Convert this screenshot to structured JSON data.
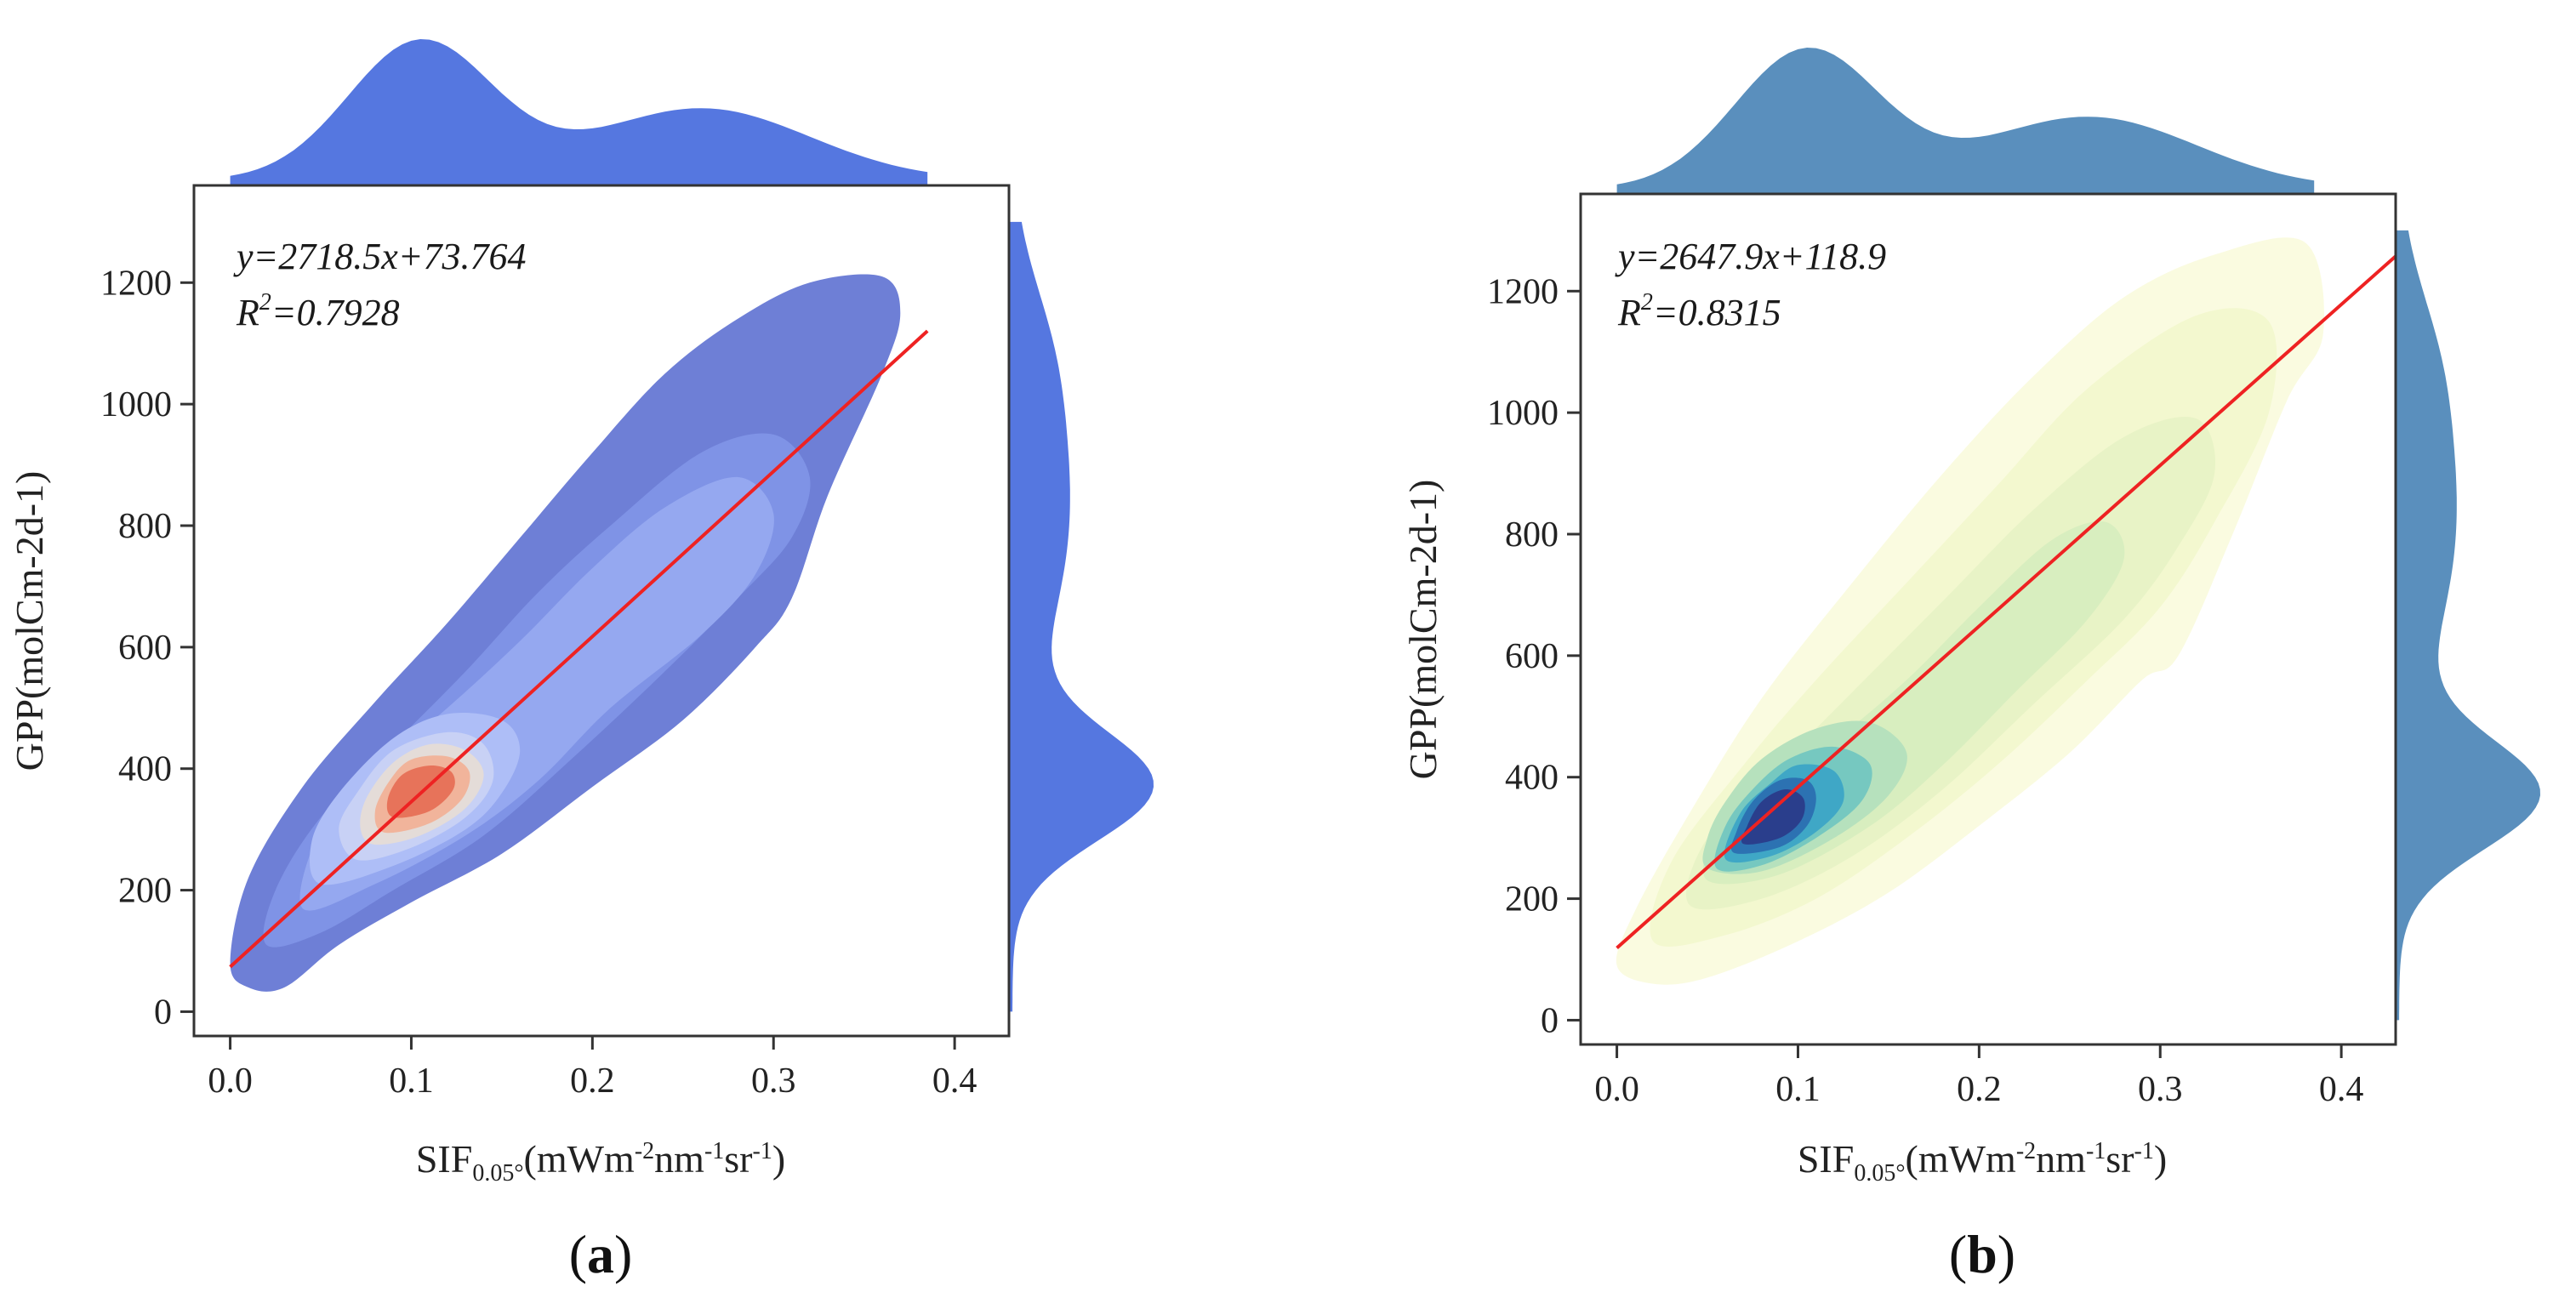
{
  "chart_data": [
    {
      "type": "scatter",
      "subtype": "joint-kde-density-with-regression",
      "panel_label": "a",
      "equation": "y=2718.5x+73.764",
      "r2_label": "R",
      "r2_sup": "2",
      "r2_value": "=0.7928",
      "regression": {
        "slope": 2718.5,
        "intercept": 73.764,
        "x_range": [
          0.0,
          0.385
        ],
        "color": "#ee2222"
      },
      "xlabel": {
        "base": "SIF",
        "sub": "0.05°",
        "open": "(mWm",
        "s1": "-2",
        "t1": "nm",
        "s2": "-1",
        "t2": "sr",
        "s3": "-1",
        "close": ")"
      },
      "ylabel": "GPP(molCm-2d-1)",
      "xlim": [
        -0.02,
        0.43
      ],
      "ylim": [
        -40,
        1360
      ],
      "xticks": [
        0.0,
        0.1,
        0.2,
        0.3,
        0.4
      ],
      "xtick_labels": [
        "0.0",
        "0.1",
        "0.2",
        "0.3",
        "0.4"
      ],
      "yticks": [
        0,
        200,
        400,
        600,
        800,
        1000,
        1200
      ],
      "ytick_labels": [
        "0",
        "200",
        "400",
        "600",
        "800",
        "1000",
        "1200"
      ],
      "density_colormap": "coolwarm",
      "marginal_color": "#5577e0",
      "contour_levels": [
        {
          "color": "#6e7fd6",
          "points": [
            [
              0.0,
              80
            ],
            [
              0.01,
              40
            ],
            [
              0.03,
              40
            ],
            [
              0.06,
              110
            ],
            [
              0.1,
              180
            ],
            [
              0.15,
              260
            ],
            [
              0.2,
              370
            ],
            [
              0.25,
              480
            ],
            [
              0.29,
              600
            ],
            [
              0.31,
              680
            ],
            [
              0.33,
              850
            ],
            [
              0.36,
              1050
            ],
            [
              0.37,
              1150
            ],
            [
              0.36,
              1210
            ],
            [
              0.32,
              1200
            ],
            [
              0.28,
              1140
            ],
            [
              0.24,
              1050
            ],
            [
              0.2,
              920
            ],
            [
              0.16,
              780
            ],
            [
              0.12,
              640
            ],
            [
              0.08,
              510
            ],
            [
              0.04,
              370
            ],
            [
              0.01,
              220
            ]
          ]
        },
        {
          "color": "#7f93e6",
          "points": [
            [
              0.02,
              110
            ],
            [
              0.05,
              130
            ],
            [
              0.09,
              200
            ],
            [
              0.14,
              290
            ],
            [
              0.19,
              420
            ],
            [
              0.24,
              560
            ],
            [
              0.28,
              680
            ],
            [
              0.31,
              780
            ],
            [
              0.32,
              880
            ],
            [
              0.3,
              950
            ],
            [
              0.26,
              920
            ],
            [
              0.21,
              800
            ],
            [
              0.17,
              690
            ],
            [
              0.13,
              560
            ],
            [
              0.09,
              440
            ],
            [
              0.05,
              320
            ],
            [
              0.025,
              200
            ]
          ]
        },
        {
          "color": "#95a8f0",
          "points": [
            [
              0.04,
              170
            ],
            [
              0.08,
              210
            ],
            [
              0.13,
              290
            ],
            [
              0.17,
              380
            ],
            [
              0.21,
              500
            ],
            [
              0.26,
              620
            ],
            [
              0.29,
              720
            ],
            [
              0.3,
              820
            ],
            [
              0.28,
              880
            ],
            [
              0.24,
              830
            ],
            [
              0.2,
              730
            ],
            [
              0.16,
              610
            ],
            [
              0.12,
              500
            ],
            [
              0.08,
              400
            ],
            [
              0.05,
              300
            ]
          ]
        },
        {
          "color": "#aebef7",
          "points": [
            [
              0.05,
              210
            ],
            [
              0.09,
              240
            ],
            [
              0.13,
              300
            ],
            [
              0.15,
              360
            ],
            [
              0.16,
              430
            ],
            [
              0.15,
              480
            ],
            [
              0.12,
              490
            ],
            [
              0.09,
              450
            ],
            [
              0.06,
              360
            ],
            [
              0.045,
              280
            ]
          ]
        },
        {
          "color": "#c8d1f5",
          "points": [
            [
              0.07,
              250
            ],
            [
              0.1,
              270
            ],
            [
              0.13,
              320
            ],
            [
              0.145,
              380
            ],
            [
              0.14,
              440
            ],
            [
              0.12,
              460
            ],
            [
              0.09,
              430
            ],
            [
              0.07,
              360
            ],
            [
              0.06,
              300
            ]
          ]
        },
        {
          "color": "#e4dcd8",
          "points": [
            [
              0.08,
              275
            ],
            [
              0.105,
              290
            ],
            [
              0.13,
              335
            ],
            [
              0.14,
              390
            ],
            [
              0.13,
              430
            ],
            [
              0.11,
              440
            ],
            [
              0.09,
              410
            ],
            [
              0.075,
              350
            ],
            [
              0.072,
              300
            ]
          ]
        },
        {
          "color": "#f1b49b",
          "points": [
            [
              0.085,
              295
            ],
            [
              0.11,
              310
            ],
            [
              0.128,
              350
            ],
            [
              0.132,
              395
            ],
            [
              0.12,
              420
            ],
            [
              0.1,
              415
            ],
            [
              0.088,
              380
            ],
            [
              0.08,
              330
            ]
          ]
        },
        {
          "color": "#e7735a",
          "points": [
            [
              0.09,
              320
            ],
            [
              0.11,
              330
            ],
            [
              0.123,
              365
            ],
            [
              0.122,
              395
            ],
            [
              0.11,
              405
            ],
            [
              0.095,
              390
            ],
            [
              0.087,
              350
            ]
          ]
        }
      ]
    },
    {
      "type": "scatter",
      "subtype": "joint-kde-density-with-regression",
      "panel_label": "b",
      "equation": "y=2647.9x+118.9",
      "r2_label": "R",
      "r2_sup": "2",
      "r2_value": "=0.8315",
      "regression": {
        "slope": 2647.9,
        "intercept": 118.9,
        "x_range": [
          0.0,
          0.43
        ],
        "color": "#ee2222"
      },
      "xlabel": {
        "base": "SIF",
        "sub": "0.05°",
        "open": "(mWm",
        "s1": "-2",
        "t1": "nm",
        "s2": "-1",
        "t2": "sr",
        "s3": "-1",
        "close": ")"
      },
      "ylabel": "GPP(molCm-2d-1)",
      "xlim": [
        -0.02,
        0.43
      ],
      "ylim": [
        -40,
        1360
      ],
      "xticks": [
        0.0,
        0.1,
        0.2,
        0.3,
        0.4
      ],
      "xtick_labels": [
        "0.0",
        "0.1",
        "0.2",
        "0.3",
        "0.4"
      ],
      "yticks": [
        0,
        200,
        400,
        600,
        800,
        1000,
        1200
      ],
      "ytick_labels": [
        "0",
        "200",
        "400",
        "600",
        "800",
        "1000",
        "1200"
      ],
      "density_colormap": "YlGnBu",
      "marginal_color": "#5a8fbd",
      "contour_levels": [
        {
          "color": "#fafbe0",
          "points": [
            [
              0.0,
              90
            ],
            [
              0.02,
              60
            ],
            [
              0.05,
              70
            ],
            [
              0.1,
              130
            ],
            [
              0.15,
              210
            ],
            [
              0.2,
              320
            ],
            [
              0.25,
              440
            ],
            [
              0.29,
              560
            ],
            [
              0.31,
              600
            ],
            [
              0.34,
              800
            ],
            [
              0.37,
              1020
            ],
            [
              0.39,
              1130
            ],
            [
              0.38,
              1280
            ],
            [
              0.33,
              1260
            ],
            [
              0.28,
              1190
            ],
            [
              0.23,
              1060
            ],
            [
              0.18,
              900
            ],
            [
              0.13,
              720
            ],
            [
              0.08,
              530
            ],
            [
              0.04,
              340
            ],
            [
              0.01,
              180
            ]
          ]
        },
        {
          "color": "#f3f8cf",
          "points": [
            [
              0.02,
              130
            ],
            [
              0.06,
              140
            ],
            [
              0.11,
              200
            ],
            [
              0.16,
              300
            ],
            [
              0.21,
              420
            ],
            [
              0.26,
              560
            ],
            [
              0.3,
              680
            ],
            [
              0.33,
              820
            ],
            [
              0.36,
              1000
            ],
            [
              0.36,
              1150
            ],
            [
              0.32,
              1160
            ],
            [
              0.26,
              1040
            ],
            [
              0.21,
              880
            ],
            [
              0.16,
              720
            ],
            [
              0.11,
              560
            ],
            [
              0.07,
              420
            ],
            [
              0.03,
              260
            ]
          ]
        },
        {
          "color": "#e8f3c6",
          "points": [
            [
              0.04,
              190
            ],
            [
              0.08,
              200
            ],
            [
              0.13,
              270
            ],
            [
              0.18,
              380
            ],
            [
              0.23,
              520
            ],
            [
              0.28,
              660
            ],
            [
              0.31,
              780
            ],
            [
              0.33,
              900
            ],
            [
              0.32,
              990
            ],
            [
              0.28,
              960
            ],
            [
              0.23,
              840
            ],
            [
              0.18,
              690
            ],
            [
              0.13,
              540
            ],
            [
              0.09,
              420
            ],
            [
              0.05,
              300
            ]
          ]
        },
        {
          "color": "#d8eebf",
          "points": [
            [
              0.05,
              230
            ],
            [
              0.09,
              240
            ],
            [
              0.14,
              320
            ],
            [
              0.18,
              420
            ],
            [
              0.22,
              540
            ],
            [
              0.26,
              660
            ],
            [
              0.28,
              760
            ],
            [
              0.27,
              820
            ],
            [
              0.24,
              790
            ],
            [
              0.2,
              680
            ],
            [
              0.16,
              560
            ],
            [
              0.12,
              460
            ],
            [
              0.08,
              380
            ],
            [
              0.055,
              310
            ]
          ]
        },
        {
          "color": "#b6e1bd",
          "points": [
            [
              0.05,
              250
            ],
            [
              0.08,
              245
            ],
            [
              0.12,
              300
            ],
            [
              0.15,
              370
            ],
            [
              0.16,
              440
            ],
            [
              0.14,
              490
            ],
            [
              0.11,
              480
            ],
            [
              0.08,
              430
            ],
            [
              0.06,
              360
            ],
            [
              0.05,
              300
            ]
          ]
        },
        {
          "color": "#76c8c0",
          "points": [
            [
              0.055,
              250
            ],
            [
              0.08,
              255
            ],
            [
              0.11,
              300
            ],
            [
              0.135,
              360
            ],
            [
              0.14,
              420
            ],
            [
              0.12,
              450
            ],
            [
              0.095,
              430
            ],
            [
              0.075,
              380
            ],
            [
              0.06,
              320
            ]
          ]
        },
        {
          "color": "#3fa7c6",
          "points": [
            [
              0.06,
              265
            ],
            [
              0.085,
              270
            ],
            [
              0.11,
              310
            ],
            [
              0.125,
              360
            ],
            [
              0.12,
              410
            ],
            [
              0.1,
              420
            ],
            [
              0.085,
              390
            ],
            [
              0.068,
              340
            ]
          ]
        },
        {
          "color": "#2c72b2",
          "points": [
            [
              0.065,
              275
            ],
            [
              0.09,
              285
            ],
            [
              0.105,
              320
            ],
            [
              0.11,
              365
            ],
            [
              0.105,
              395
            ],
            [
              0.09,
              395
            ],
            [
              0.075,
              360
            ],
            [
              0.066,
              310
            ]
          ]
        },
        {
          "color": "#2a3e8c",
          "points": [
            [
              0.07,
              290
            ],
            [
              0.09,
              300
            ],
            [
              0.102,
              330
            ],
            [
              0.103,
              365
            ],
            [
              0.093,
              380
            ],
            [
              0.08,
              360
            ],
            [
              0.072,
              320
            ]
          ]
        }
      ]
    }
  ]
}
